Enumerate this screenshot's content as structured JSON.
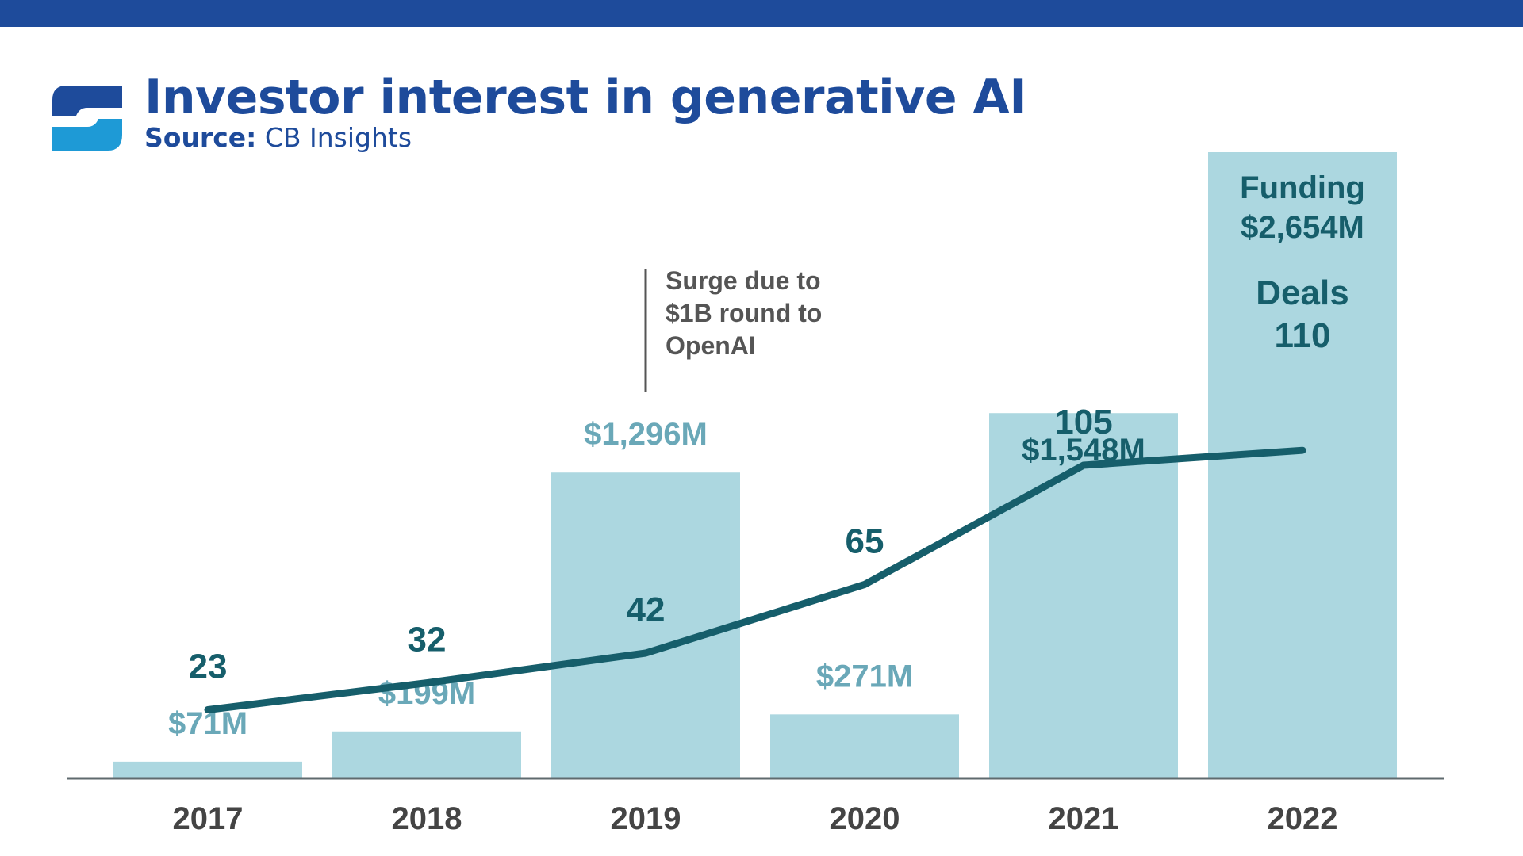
{
  "header": {
    "title": "Investor interest in generative AI",
    "source_label": "Source:",
    "source_name": "CB Insights"
  },
  "colors": {
    "brand": "#1e4b9b",
    "logo_accent": "#1e9ad6",
    "bar": "#acd7e0",
    "bar_label": "#6aa8b8",
    "line": "#165e6b",
    "axis": "#5f6a6e",
    "tick_label": "#444444",
    "annotation": "#555555"
  },
  "chart_data": {
    "type": "bar",
    "categories": [
      "2017",
      "2018",
      "2019",
      "2020",
      "2021",
      "2022"
    ],
    "series": [
      {
        "name": "Funding",
        "type": "bar",
        "values": [
          71,
          199,
          1296,
          271,
          1548,
          2654
        ],
        "labels": [
          "$71M",
          "$199M",
          "$1,296M",
          "$271M",
          "$1,548M",
          "$2,654M"
        ]
      },
      {
        "name": "Deals",
        "type": "line",
        "values": [
          23,
          32,
          42,
          65,
          105,
          110
        ],
        "labels": [
          "23",
          "32",
          "42",
          "65",
          "105",
          "110"
        ]
      }
    ],
    "ylim": [
      0,
      2654
    ],
    "y2lim": [
      0,
      210
    ],
    "legend": {
      "funding": "Funding",
      "deals": "Deals"
    },
    "annotation": {
      "category": "2019",
      "lines": [
        "Surge due to",
        "$1B round to",
        "OpenAI"
      ]
    },
    "grid": false
  }
}
